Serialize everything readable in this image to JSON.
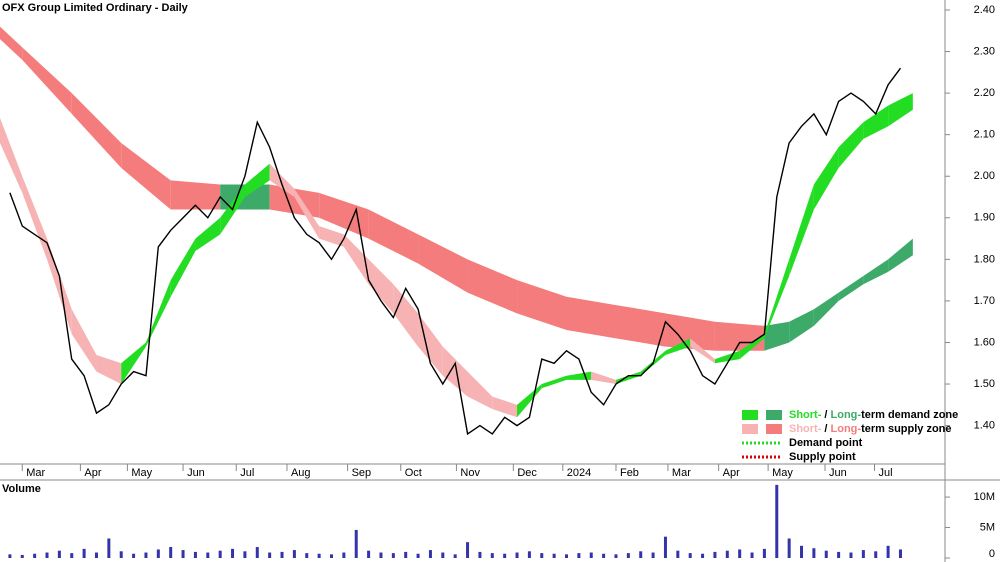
{
  "chart_data": {
    "type": "stock",
    "title": "OFX Group Limited Ordinary - Daily",
    "volume_title": "Volume",
    "xlim": [
      -1.8,
      74.6
    ],
    "xticks": [
      {
        "value": 0,
        "label": "Mar"
      },
      {
        "value": 4.7,
        "label": "Apr"
      },
      {
        "value": 8.5,
        "label": "May"
      },
      {
        "value": 13,
        "label": "Jun"
      },
      {
        "value": 17.3,
        "label": "Jul"
      },
      {
        "value": 21.4,
        "label": "Aug"
      },
      {
        "value": 26.3,
        "label": "Sep"
      },
      {
        "value": 30.6,
        "label": "Oct"
      },
      {
        "value": 35.1,
        "label": "Nov"
      },
      {
        "value": 39.7,
        "label": "Dec"
      },
      {
        "value": 43.7,
        "label": "2024"
      },
      {
        "value": 48,
        "label": "Feb"
      },
      {
        "value": 52.2,
        "label": "Mar"
      },
      {
        "value": 56.3,
        "label": "Apr"
      },
      {
        "value": 60.3,
        "label": "May"
      },
      {
        "value": 64.9,
        "label": "Jun"
      },
      {
        "value": 68.9,
        "label": "Jul"
      }
    ],
    "ylim": [
      1.31,
      2.424
    ],
    "yticks": [
      {
        "value": 1.4,
        "label": "1.40"
      },
      {
        "value": 1.5,
        "label": "1.50"
      },
      {
        "value": 1.6,
        "label": "1.60"
      },
      {
        "value": 1.7,
        "label": "1.70"
      },
      {
        "value": 1.8,
        "label": "1.80"
      },
      {
        "value": 1.9,
        "label": "1.90"
      },
      {
        "value": 2.0,
        "label": "2.00"
      },
      {
        "value": 2.1,
        "label": "2.10"
      },
      {
        "value": 2.2,
        "label": "2.20"
      },
      {
        "value": 2.3,
        "label": "2.30"
      },
      {
        "value": 2.4,
        "label": "2.40"
      }
    ],
    "price_color": "#000000",
    "x": [
      -1,
      0,
      1,
      2,
      3,
      4,
      5,
      6,
      7,
      8,
      9,
      10,
      11,
      12,
      13,
      14,
      15,
      16,
      17,
      18,
      19,
      20,
      21,
      22,
      23,
      24,
      25,
      26,
      27,
      28,
      29,
      30,
      31,
      32,
      33,
      34,
      35,
      36,
      37,
      38,
      39,
      40,
      41,
      42,
      43,
      44,
      45,
      46,
      47,
      48,
      49,
      50,
      51,
      52,
      53,
      54,
      55,
      56,
      57,
      58,
      59,
      60,
      61,
      62,
      63,
      64,
      65,
      66,
      67,
      68,
      69,
      70,
      71
    ],
    "close": [
      1.96,
      1.88,
      1.86,
      1.84,
      1.76,
      1.56,
      1.52,
      1.43,
      1.45,
      1.5,
      1.53,
      1.52,
      1.83,
      1.87,
      1.9,
      1.93,
      1.9,
      1.95,
      1.92,
      2.0,
      2.13,
      2.07,
      1.98,
      1.9,
      1.86,
      1.84,
      1.8,
      1.85,
      1.92,
      1.75,
      1.7,
      1.66,
      1.73,
      1.68,
      1.55,
      1.5,
      1.55,
      1.38,
      1.4,
      1.38,
      1.42,
      1.4,
      1.42,
      1.56,
      1.55,
      1.58,
      1.56,
      1.48,
      1.45,
      1.5,
      1.52,
      1.52,
      1.55,
      1.65,
      1.62,
      1.58,
      1.52,
      1.5,
      1.55,
      1.6,
      1.6,
      1.62,
      1.95,
      2.08,
      2.12,
      2.15,
      2.1,
      2.18,
      2.2,
      2.18,
      2.15,
      2.22,
      2.26
    ],
    "volume": [
      600000,
      500000,
      700000,
      900000,
      1200000,
      800000,
      1500000,
      900000,
      3200000,
      1100000,
      700000,
      900000,
      1400000,
      1800000,
      1300000,
      1000000,
      900000,
      1200000,
      1500000,
      1100000,
      1800000,
      900000,
      1000000,
      1300000,
      800000,
      700000,
      600000,
      900000,
      4600000,
      1200000,
      900000,
      800000,
      1000000,
      700000,
      1300000,
      900000,
      600000,
      2600000,
      1000000,
      800000,
      700000,
      900000,
      1100000,
      800000,
      700000,
      600000,
      800000,
      900000,
      700000,
      600000,
      800000,
      1100000,
      900000,
      3500000,
      1200000,
      800000,
      700000,
      1000000,
      1200000,
      1400000,
      900000,
      1500000,
      12000000,
      3200000,
      2000000,
      1600000,
      1200000,
      1000000,
      900000,
      1300000,
      1100000,
      2000000,
      1400000
    ],
    "volume_color": "#3333aa",
    "volume_ylim": [
      0,
      12800000
    ],
    "volume_yticks": [
      {
        "value": 0,
        "label": "0"
      },
      {
        "value": 5000000,
        "label": "5M"
      },
      {
        "value": 10000000,
        "label": "10M"
      }
    ],
    "bands": [
      {
        "x": [
          -1.8,
          0,
          4,
          8,
          12,
          16,
          20,
          24,
          28,
          32,
          36,
          40,
          44,
          48,
          52,
          56,
          60,
          62,
          64,
          66,
          68,
          70,
          72
        ],
        "upper": [
          2.36,
          2.31,
          2.2,
          2.08,
          1.99,
          1.98,
          1.98,
          1.96,
          1.92,
          1.86,
          1.8,
          1.75,
          1.71,
          1.69,
          1.67,
          1.65,
          1.64,
          1.65,
          1.68,
          1.72,
          1.76,
          1.8,
          1.85
        ],
        "lower": [
          2.33,
          2.28,
          2.15,
          2.02,
          1.92,
          1.92,
          1.92,
          1.9,
          1.85,
          1.79,
          1.72,
          1.67,
          1.63,
          1.61,
          1.59,
          1.58,
          1.58,
          1.6,
          1.64,
          1.7,
          1.74,
          1.77,
          1.81
        ],
        "demand_color": "#3daa6a",
        "supply_color": "#f47c7c"
      },
      {
        "x": [
          -1.8,
          0,
          2,
          4,
          6,
          8,
          10,
          12,
          14,
          16,
          18,
          20,
          22,
          24,
          26,
          28,
          30,
          32,
          34,
          36,
          38,
          40,
          42,
          44,
          46,
          48,
          50,
          52,
          54,
          56,
          58,
          60,
          62,
          64,
          66,
          68,
          70,
          72
        ],
        "upper": [
          2.14,
          2.0,
          1.85,
          1.68,
          1.57,
          1.55,
          1.6,
          1.75,
          1.85,
          1.9,
          1.98,
          2.03,
          1.97,
          1.88,
          1.86,
          1.8,
          1.74,
          1.67,
          1.59,
          1.53,
          1.47,
          1.45,
          1.5,
          1.52,
          1.53,
          1.51,
          1.53,
          1.58,
          1.61,
          1.56,
          1.58,
          1.62,
          1.8,
          1.98,
          2.07,
          2.13,
          2.17,
          2.2
        ],
        "lower": [
          2.08,
          1.96,
          1.8,
          1.62,
          1.53,
          1.5,
          1.59,
          1.71,
          1.82,
          1.86,
          1.95,
          1.99,
          1.95,
          1.85,
          1.83,
          1.74,
          1.67,
          1.59,
          1.52,
          1.47,
          1.44,
          1.42,
          1.49,
          1.51,
          1.51,
          1.5,
          1.52,
          1.57,
          1.59,
          1.55,
          1.56,
          1.61,
          1.76,
          1.92,
          2.02,
          2.09,
          2.12,
          2.16
        ],
        "demand_color": "#22dd22",
        "supply_color": "#f7b3b3"
      }
    ],
    "legend": [
      {
        "short": "Short-",
        "sep": "/ ",
        "long": "Long-",
        "text": "term demand zone",
        "short_color": "#22dd22",
        "long_color": "#3daa6a"
      },
      {
        "short": "Short-",
        "sep": "/ ",
        "long": "Long-",
        "text": "term supply zone",
        "short_color": "#f7b3b3",
        "long_color": "#f47c7c"
      }
    ],
    "points": [
      {
        "text": "Demand point",
        "color": "#22dd22"
      },
      {
        "text": "Supply point",
        "color": "#dd0000"
      }
    ]
  }
}
